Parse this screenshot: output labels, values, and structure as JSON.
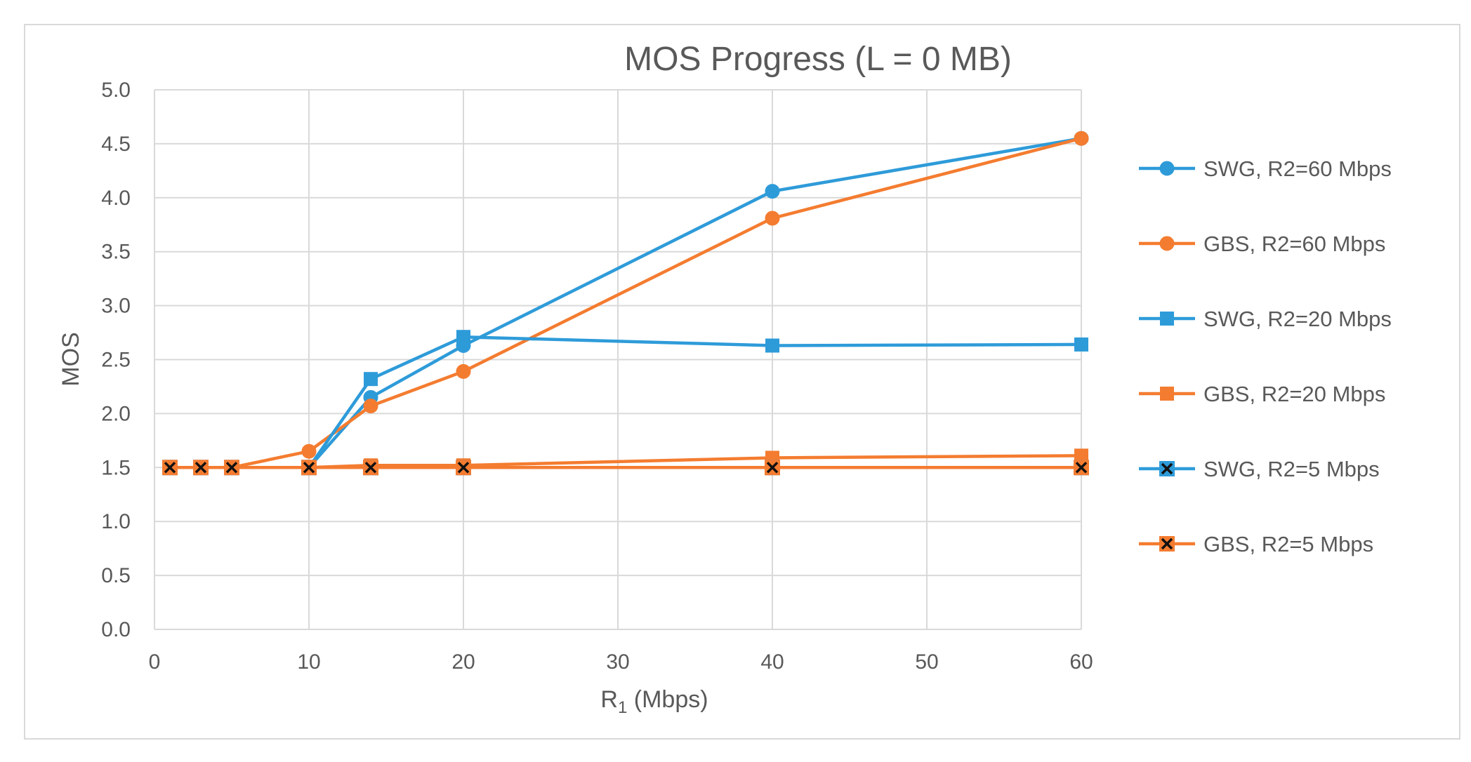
{
  "chart_data": {
    "type": "line",
    "title": "MOS Progress (L = 0 MB)",
    "xlabel_main": "R",
    "xlabel_sub": "1",
    "xlabel_unit": " (Mbps)",
    "ylabel": "MOS",
    "xlim": [
      0,
      60
    ],
    "ylim": [
      0,
      5
    ],
    "xticks": [
      0,
      10,
      20,
      30,
      40,
      50,
      60
    ],
    "yticks": [
      0.0,
      0.5,
      1.0,
      1.5,
      2.0,
      2.5,
      3.0,
      3.5,
      4.0,
      4.5,
      5.0
    ],
    "ytick_labels": [
      "0.0",
      "0.5",
      "1.0",
      "1.5",
      "2.0",
      "2.5",
      "3.0",
      "3.5",
      "4.0",
      "4.5",
      "5.0"
    ],
    "grid": true,
    "legend_position": "right",
    "x": [
      1,
      3,
      5,
      10,
      14,
      20,
      40,
      60
    ],
    "series": [
      {
        "name": "SWG, R2=60 Mbps",
        "color": "#2e9bd9",
        "marker": "circle",
        "values": [
          1.5,
          1.5,
          1.5,
          1.5,
          2.15,
          2.63,
          4.06,
          4.55
        ]
      },
      {
        "name": "GBS, R2=60 Mbps",
        "color": "#f47c30",
        "marker": "circle",
        "values": [
          1.5,
          1.5,
          1.5,
          1.65,
          2.07,
          2.39,
          3.81,
          4.55
        ]
      },
      {
        "name": "SWG, R2=20 Mbps",
        "color": "#2e9bd9",
        "marker": "square",
        "values": [
          1.5,
          1.5,
          1.5,
          1.5,
          2.32,
          2.71,
          2.63,
          2.64
        ]
      },
      {
        "name": "GBS, R2=20 Mbps",
        "color": "#f47c30",
        "marker": "square",
        "values": [
          1.5,
          1.5,
          1.5,
          1.5,
          1.52,
          1.52,
          1.59,
          1.61
        ]
      },
      {
        "name": "SWG, R2=5 Mbps",
        "color": "#2e9bd9",
        "marker": "x-square",
        "values": [
          1.5,
          1.5,
          1.5,
          1.5,
          1.5,
          1.5,
          1.5,
          1.5
        ]
      },
      {
        "name": "GBS, R2=5 Mbps",
        "color": "#f47c30",
        "marker": "x-square",
        "values": [
          1.5,
          1.5,
          1.5,
          1.5,
          1.5,
          1.5,
          1.5,
          1.5
        ]
      }
    ]
  }
}
